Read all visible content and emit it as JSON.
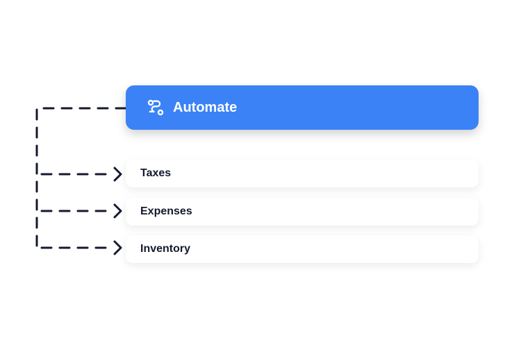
{
  "automate": {
    "label": "Automate",
    "icon": "workflow-icon",
    "color": "#3b82f6"
  },
  "items": [
    {
      "label": "Taxes"
    },
    {
      "label": "Expenses"
    },
    {
      "label": "Inventory"
    }
  ]
}
